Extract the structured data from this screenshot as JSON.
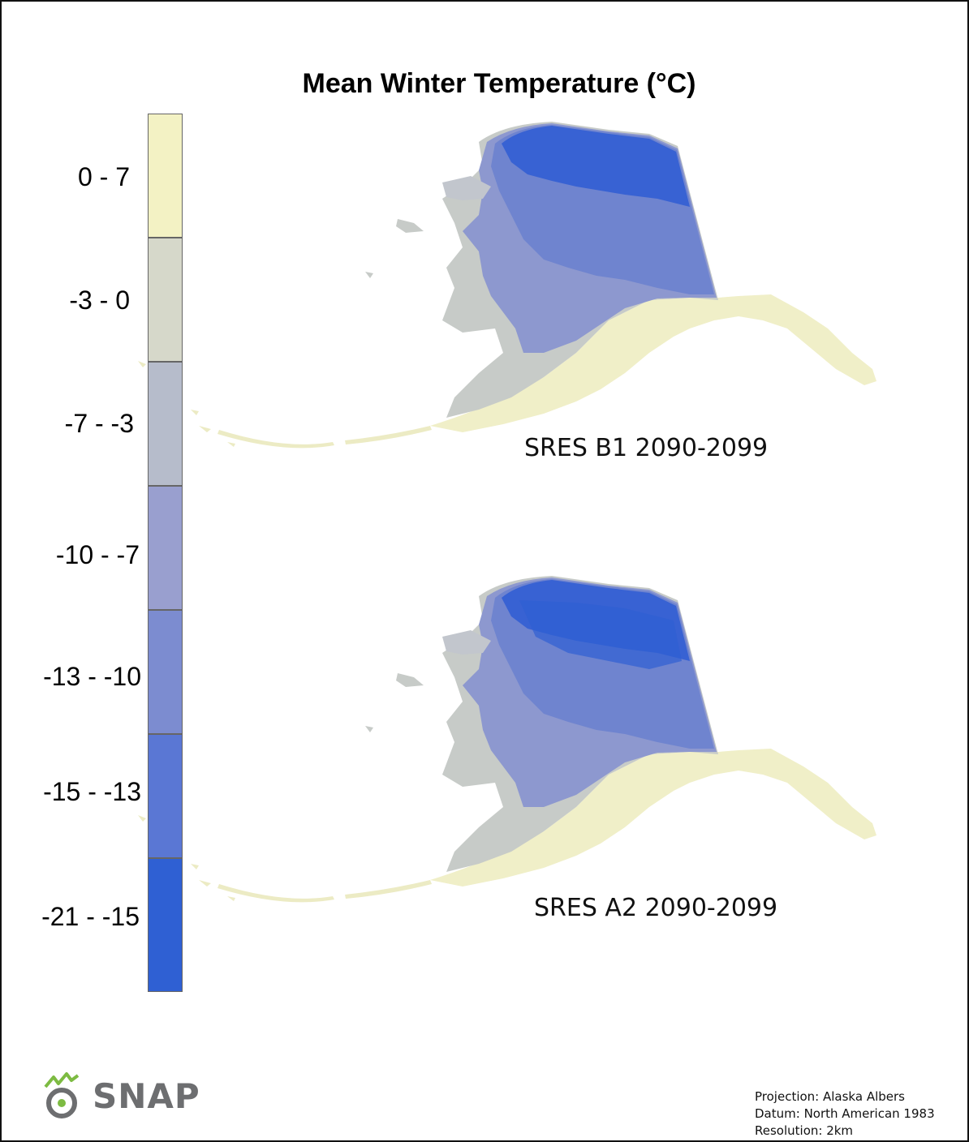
{
  "title": "Mean Winter Temperature (°C)",
  "legend": {
    "items": [
      {
        "label": "0 - 7",
        "color": "#f3f2c4"
      },
      {
        "label": "-3 - 0",
        "color": "#d6d8ca"
      },
      {
        "label": "-7 - -3",
        "color": "#b6bccb"
      },
      {
        "label": "-10 - -7",
        "color": "#999fcf"
      },
      {
        "label": "-13 - -10",
        "color": "#7c8cd0"
      },
      {
        "label": "-15 - -13",
        "color": "#5a77d4"
      },
      {
        "label": "-21 - -15",
        "color": "#2f60d3"
      }
    ]
  },
  "maps": [
    {
      "label": "SRES B1 2090-2099"
    },
    {
      "label": "SRES A2 2090-2099"
    }
  ],
  "logo": {
    "text": "SNAP",
    "leaf_color": "#7dbb42",
    "ring_color": "#6d6e70"
  },
  "metadata": {
    "projection": "Projection: Alaska Albers",
    "datum": "Datum: North American 1983",
    "resolution": "Resolution: 2km"
  }
}
